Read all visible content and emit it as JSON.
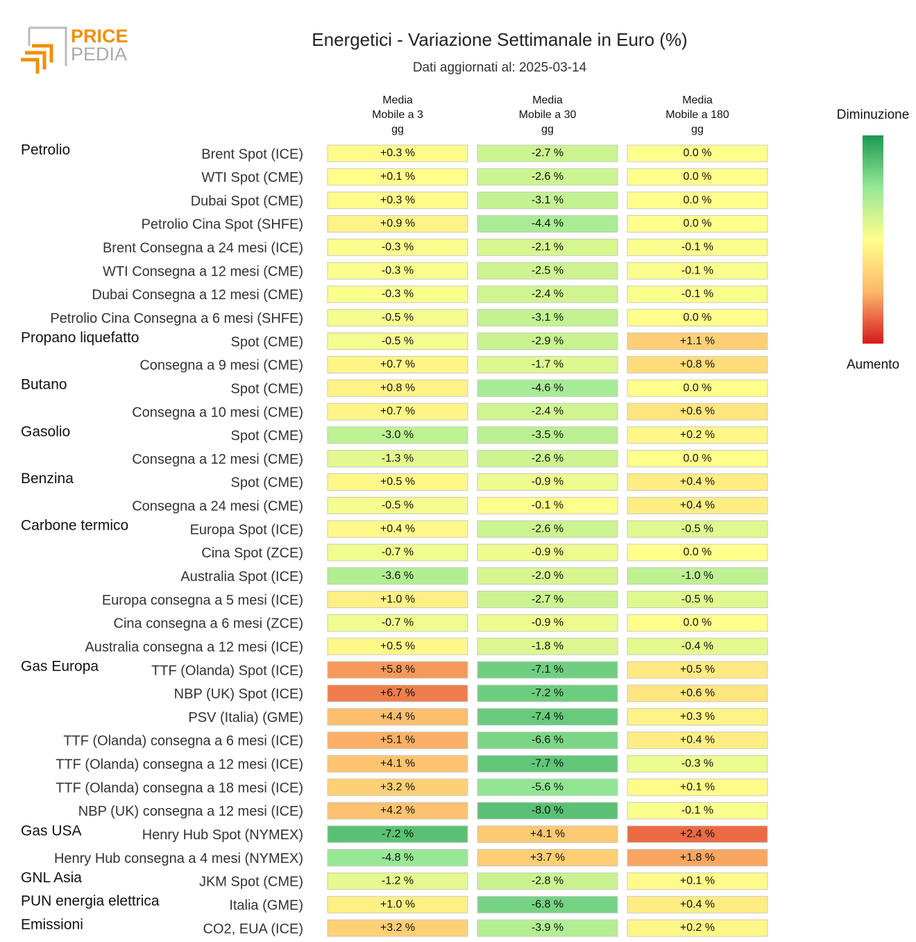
{
  "logo": {
    "line1": "PRICE",
    "line2": "PEDIA"
  },
  "chart_data": {
    "type": "heatmap",
    "title": "Energetici - Variazione Settimanale in Euro (%)",
    "subtitle": "Dati aggiornati al: 2025-03-14",
    "colorbar": {
      "top_label": "Diminuzione",
      "bottom_label": "Aumento",
      "colors": [
        "#1a9850",
        "#96e896",
        "#ffff8c",
        "#fdb86a",
        "#d7191c"
      ]
    },
    "row_groups": [
      "Petrolio",
      null,
      null,
      null,
      null,
      null,
      null,
      null,
      "Propano liquefatto",
      null,
      "Butano",
      null,
      "Gasolio",
      null,
      "Benzina",
      null,
      "Carbone termico",
      null,
      null,
      null,
      null,
      null,
      "Gas Europa",
      null,
      null,
      null,
      null,
      null,
      null,
      "Gas USA",
      null,
      "GNL Asia",
      "PUN energia elettrica",
      "Emissioni"
    ],
    "categories": [
      "Brent Spot (ICE)",
      "WTI Spot (CME)",
      "Dubai Spot (CME)",
      "Petrolio Cina Spot (SHFE)",
      "Brent Consegna a 24 mesi (ICE)",
      "WTI Consegna a 12 mesi (CME)",
      "Dubai Consegna a 12 mesi (CME)",
      "Petrolio Cina Consegna a 6 mesi (SHFE)",
      "Spot (CME)",
      "Consegna a 9 mesi (CME)",
      "Spot (CME)",
      "Consegna a 10 mesi (CME)",
      "Spot (CME)",
      "Consegna a 12 mesi (CME)",
      "Spot (CME)",
      "Consegna a 24 mesi (CME)",
      "Europa Spot (ICE)",
      "Cina Spot (ZCE)",
      "Australia Spot (ICE)",
      "Europa consegna a 5 mesi (ICE)",
      "Cina consegna a 6 mesi (ZCE)",
      "Australia consegna a 12 mesi (ICE)",
      "TTF (Olanda) Spot (ICE)",
      "NBP (UK) Spot (ICE)",
      "PSV (Italia) (GME)",
      "TTF (Olanda) consegna a 6 mesi (ICE)",
      "TTF (Olanda) consegna a 12 mesi (ICE)",
      "TTF (Olanda) consegna a 18 mesi (ICE)",
      "NBP (UK) consegna a 12 mesi (ICE)",
      "Henry Hub Spot (NYMEX)",
      "Henry Hub consegna a 4 mesi (NYMEX)",
      "JKM Spot (CME)",
      "Italia (GME)",
      "CO2, EUA (ICE)"
    ],
    "series": [
      {
        "name": "Media\nMobile a 3\ngg",
        "values": [
          0.3,
          0.1,
          0.3,
          0.9,
          -0.3,
          -0.3,
          -0.3,
          -0.5,
          -0.5,
          0.7,
          0.8,
          0.7,
          -3.0,
          -1.3,
          0.5,
          -0.5,
          0.4,
          -0.7,
          -3.6,
          1.0,
          -0.7,
          0.5,
          5.8,
          6.7,
          4.4,
          5.1,
          4.1,
          3.2,
          4.2,
          -7.2,
          -4.8,
          -1.2,
          1.0,
          3.2
        ],
        "value_labels": [
          "+0.3 %",
          "+0.1 %",
          "+0.3 %",
          "+0.9 %",
          "-0.3 %",
          "-0.3 %",
          "-0.3 %",
          "-0.5 %",
          "-0.5 %",
          "+0.7 %",
          "+0.8 %",
          "+0.7 %",
          "-3.0 %",
          "-1.3 %",
          "+0.5 %",
          "-0.5 %",
          "+0.4 %",
          "-0.7 %",
          "-3.6 %",
          "+1.0 %",
          "-0.7 %",
          "+0.5 %",
          "+5.8 %",
          "+6.7 %",
          "+4.4 %",
          "+5.1 %",
          "+4.1 %",
          "+3.2 %",
          "+4.2 %",
          "-7.2 %",
          "-4.8 %",
          "-1.2 %",
          "+1.0 %",
          "+3.2 %"
        ]
      },
      {
        "name": "Media\nMobile a 30\ngg",
        "values": [
          -2.7,
          -2.6,
          -3.1,
          -4.4,
          -2.1,
          -2.5,
          -2.4,
          -3.1,
          -2.9,
          -1.7,
          -4.6,
          -2.4,
          -3.5,
          -2.6,
          -0.9,
          -0.1,
          -2.6,
          -0.9,
          -2.0,
          -2.7,
          -0.9,
          -1.8,
          -7.1,
          -7.2,
          -7.4,
          -6.6,
          -7.7,
          -5.6,
          -8.0,
          4.1,
          3.7,
          -2.8,
          -6.8,
          -3.9
        ],
        "value_labels": [
          "-2.7 %",
          "-2.6 %",
          "-3.1 %",
          "-4.4 %",
          "-2.1 %",
          "-2.5 %",
          "-2.4 %",
          "-3.1 %",
          "-2.9 %",
          "-1.7 %",
          "-4.6 %",
          "-2.4 %",
          "-3.5 %",
          "-2.6 %",
          "-0.9 %",
          "-0.1 %",
          "-2.6 %",
          "-0.9 %",
          "-2.0 %",
          "-2.7 %",
          "-0.9 %",
          "-1.8 %",
          "-7.1 %",
          "-7.2 %",
          "-7.4 %",
          "-6.6 %",
          "-7.7 %",
          "-5.6 %",
          "-8.0 %",
          "+4.1 %",
          "+3.7 %",
          "-2.8 %",
          "-6.8 %",
          "-3.9 %"
        ]
      },
      {
        "name": "Media\nMobile a 180\ngg",
        "values": [
          0.0,
          0.0,
          0.0,
          0.0,
          -0.1,
          -0.1,
          -0.1,
          0.0,
          1.1,
          0.8,
          0.0,
          0.6,
          0.2,
          0.0,
          0.4,
          0.4,
          -0.5,
          0.0,
          -1.0,
          -0.5,
          0.0,
          -0.4,
          0.5,
          0.6,
          0.3,
          0.4,
          -0.3,
          0.1,
          -0.1,
          2.4,
          1.8,
          0.1,
          0.4,
          0.2
        ],
        "value_labels": [
          "0.0 %",
          "0.0 %",
          "0.0 %",
          "0.0 %",
          "-0.1 %",
          "-0.1 %",
          "-0.1 %",
          "0.0 %",
          "+1.1 %",
          "+0.8 %",
          "0.0 %",
          "+0.6 %",
          "+0.2 %",
          "0.0 %",
          "+0.4 %",
          "+0.4 %",
          "-0.5 %",
          "0.0 %",
          "-1.0 %",
          "-0.5 %",
          "0.0 %",
          "-0.4 %",
          "+0.5 %",
          "+0.6 %",
          "+0.3 %",
          "+0.4 %",
          "-0.3 %",
          "+0.1 %",
          "-0.1 %",
          "+2.4 %",
          "+1.8 %",
          "+0.1 %",
          "+0.4 %",
          "+0.2 %"
        ]
      }
    ]
  }
}
